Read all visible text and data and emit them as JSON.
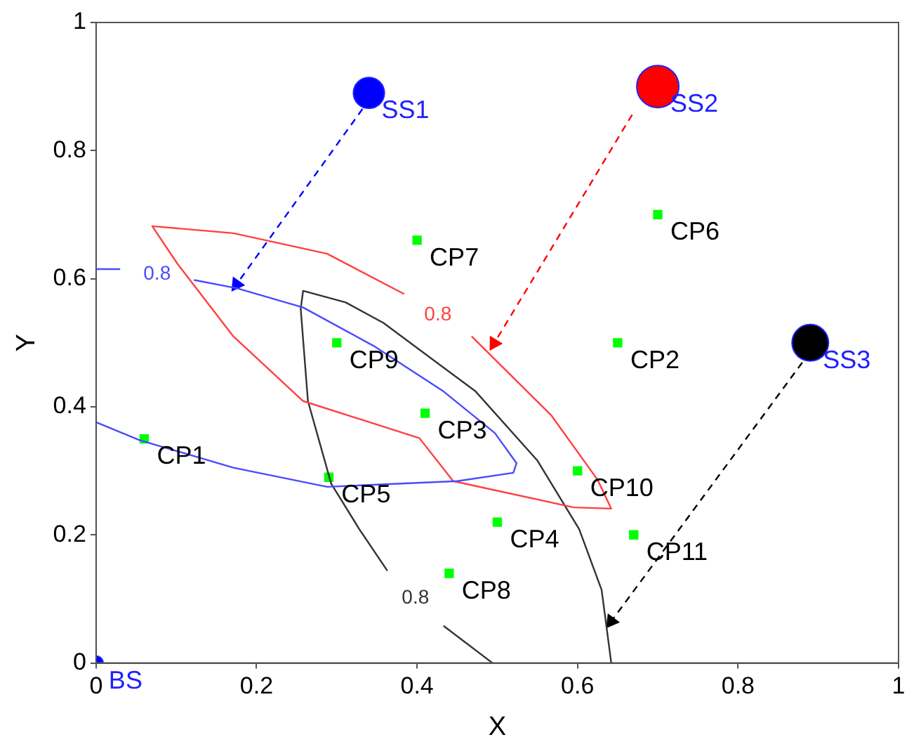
{
  "chart_data": {
    "type": "scatter",
    "xlabel": "X",
    "ylabel": "Y",
    "xlim": [
      0,
      1
    ],
    "ylim": [
      0,
      1
    ],
    "xticks": [
      0,
      0.2,
      0.4,
      0.6,
      0.8,
      1
    ],
    "yticks": [
      0,
      0.2,
      0.4,
      0.6,
      0.8,
      1
    ],
    "grid": false,
    "legend": false,
    "series": [
      {
        "type": "line",
        "color": "#4a4aff",
        "marker": "none",
        "line_style": "solid",
        "x": [
          0,
          0.03,
          null,
          0.122,
          0.176,
          0.258,
          0.346,
          0.433,
          0.497,
          0.524,
          0.52,
          0.45,
          0.288,
          0.171,
          0.054,
          0
        ],
        "values": [
          0.615,
          0.615,
          null,
          0.598,
          0.585,
          0.555,
          0.495,
          0.424,
          0.359,
          0.312,
          0.297,
          0.284,
          0.275,
          0.305,
          0.348,
          0.376
        ]
      },
      {
        "type": "line",
        "color": "#ff4040",
        "marker": "none",
        "line_style": "solid",
        "x": [
          0.384,
          0.288,
          0.171,
          0.07,
          0.101,
          0.171,
          0.258,
          0.403,
          0.445,
          0.595,
          0.642,
          0.625,
          0.567,
          0.468,
          null
        ],
        "values": [
          0.576,
          0.639,
          0.671,
          0.682,
          0.624,
          0.51,
          0.409,
          0.351,
          0.284,
          0.243,
          0.241,
          0.286,
          0.387,
          0.51,
          null
        ]
      },
      {
        "type": "line",
        "color": "#333333",
        "marker": "none",
        "line_style": "solid",
        "x": [
          0.494,
          0.433,
          null,
          0.363,
          0.328,
          0.293,
          0.264,
          0.255,
          0.258,
          0.311,
          0.358,
          0.473,
          0.55,
          0.602,
          0.63,
          0.642
        ],
        "values": [
          0,
          0.058,
          null,
          0.144,
          0.209,
          0.28,
          0.409,
          0.553,
          0.581,
          0.563,
          0.531,
          0.424,
          0.316,
          0.209,
          0.114,
          0
        ]
      },
      {
        "type": "line",
        "color": "#0000ff",
        "marker": "triangle",
        "line_style": "dashed",
        "x": [
          0.332,
          0.175
        ],
        "values": [
          0.865,
          0.591
        ]
      },
      {
        "type": "line",
        "color": "#ff0000",
        "marker": "triangle",
        "line_style": "dashed",
        "x": [
          0.668,
          0.496
        ],
        "values": [
          0.856,
          0.499
        ]
      },
      {
        "type": "line",
        "color": "#000000",
        "marker": "triangle",
        "line_style": "dashed",
        "x": [
          0.88,
          0.642
        ],
        "values": [
          0.469,
          0.065
        ]
      },
      {
        "type": "scatter",
        "color": "#00ff00",
        "marker": "square",
        "x": [
          0.06,
          0.65,
          0.41,
          0.5,
          0.29,
          0.7,
          0.4,
          0.44,
          0.3,
          0.6,
          0.67
        ],
        "values": [
          0.35,
          0.5,
          0.39,
          0.22,
          0.29,
          0.7,
          0.66,
          0.14,
          0.5,
          0.3,
          0.2
        ]
      },
      {
        "type": "bubble",
        "colors": [
          "#0000ff",
          "#ff0000",
          "#000000",
          "#0000ff"
        ],
        "marker": "circle",
        "x": [
          0.34,
          0.7,
          0.89,
          0
        ],
        "values": [
          0.89,
          0.9,
          0.5,
          0
        ],
        "sizes": [
          0.54,
          1,
          0.75,
          0.11
        ]
      }
    ],
    "annotations": [
      {
        "text": "SS1",
        "x": 0.34,
        "y": 0.89
      },
      {
        "text": "SS2",
        "x": 0.7,
        "y": 0.9
      },
      {
        "text": "SS3",
        "x": 0.89,
        "y": 0.5
      },
      {
        "text": "BS",
        "x": 0,
        "y": 0
      },
      {
        "text": "CP1",
        "x": 0.06,
        "y": 0.35
      },
      {
        "text": "CP2",
        "x": 0.65,
        "y": 0.5
      },
      {
        "text": "CP3",
        "x": 0.41,
        "y": 0.39
      },
      {
        "text": "CP4",
        "x": 0.5,
        "y": 0.22
      },
      {
        "text": "CP5",
        "x": 0.29,
        "y": 0.29
      },
      {
        "text": "CP6",
        "x": 0.7,
        "y": 0.7
      },
      {
        "text": "CP7",
        "x": 0.4,
        "y": 0.66
      },
      {
        "text": "CP8",
        "x": 0.44,
        "y": 0.14
      },
      {
        "text": "CP9",
        "x": 0.3,
        "y": 0.5
      },
      {
        "text": "CP10",
        "x": 0.6,
        "y": 0.3
      },
      {
        "text": "CP11",
        "x": 0.67,
        "y": 0.2
      },
      {
        "text": "0.8",
        "x": 0.03,
        "y": 0.615
      },
      {
        "text": "0.8",
        "x": 0.468,
        "y": 0.51
      },
      {
        "text": "0.8",
        "x": 0.433,
        "y": 0.058
      }
    ]
  }
}
